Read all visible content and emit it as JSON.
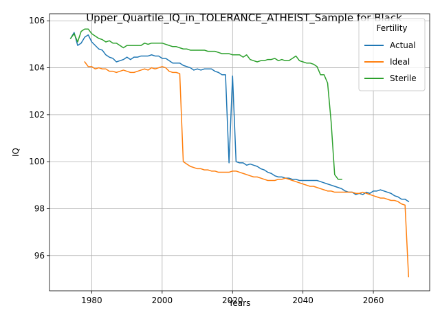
{
  "chart_data": {
    "type": "line",
    "title": "Upper_Quartile_IQ_in_TOLERANCE_ATHEIST_Sample for Black",
    "xlabel": "Years",
    "ylabel": "IQ",
    "xlim": [
      1968,
      2076
    ],
    "ylim": [
      94.5,
      106.3
    ],
    "xticks": [
      1980,
      2000,
      2020,
      2040,
      2060
    ],
    "yticks": [
      96,
      98,
      100,
      102,
      104,
      106
    ],
    "grid": true,
    "legend": {
      "title": "Fertility",
      "position": "top-right"
    },
    "series": [
      {
        "name": "Actual",
        "color": "#1f77b4",
        "points": [
          [
            1974,
            105.25
          ],
          [
            1975,
            105.5
          ],
          [
            1976,
            104.95
          ],
          [
            1977,
            105.05
          ],
          [
            1978,
            105.3
          ],
          [
            1979,
            105.4
          ],
          [
            1980,
            105.1
          ],
          [
            1981,
            104.95
          ],
          [
            1982,
            104.8
          ],
          [
            1983,
            104.75
          ],
          [
            1984,
            104.55
          ],
          [
            1985,
            104.45
          ],
          [
            1986,
            104.4
          ],
          [
            1987,
            104.25
          ],
          [
            1988,
            104.3
          ],
          [
            1989,
            104.35
          ],
          [
            1990,
            104.45
          ],
          [
            1991,
            104.35
          ],
          [
            1992,
            104.45
          ],
          [
            1993,
            104.45
          ],
          [
            1994,
            104.5
          ],
          [
            1995,
            104.5
          ],
          [
            1996,
            104.5
          ],
          [
            1997,
            104.55
          ],
          [
            1998,
            104.5
          ],
          [
            1999,
            104.5
          ],
          [
            2000,
            104.4
          ],
          [
            2001,
            104.4
          ],
          [
            2002,
            104.3
          ],
          [
            2003,
            104.2
          ],
          [
            2004,
            104.2
          ],
          [
            2005,
            104.2
          ],
          [
            2006,
            104.1
          ],
          [
            2007,
            104.05
          ],
          [
            2008,
            104.0
          ],
          [
            2009,
            103.9
          ],
          [
            2010,
            103.95
          ],
          [
            2011,
            103.9
          ],
          [
            2012,
            103.95
          ],
          [
            2013,
            103.95
          ],
          [
            2014,
            103.95
          ],
          [
            2015,
            103.85
          ],
          [
            2016,
            103.8
          ],
          [
            2017,
            103.7
          ],
          [
            2018,
            103.7
          ],
          [
            2019,
            99.95
          ],
          [
            2020,
            103.65
          ],
          [
            2021,
            100.0
          ],
          [
            2022,
            99.95
          ],
          [
            2023,
            99.95
          ],
          [
            2024,
            99.85
          ],
          [
            2025,
            99.9
          ],
          [
            2026,
            99.85
          ],
          [
            2027,
            99.8
          ],
          [
            2028,
            99.7
          ],
          [
            2029,
            99.65
          ],
          [
            2030,
            99.55
          ],
          [
            2031,
            99.5
          ],
          [
            2032,
            99.4
          ],
          [
            2033,
            99.35
          ],
          [
            2034,
            99.35
          ],
          [
            2035,
            99.3
          ],
          [
            2036,
            99.3
          ],
          [
            2037,
            99.25
          ],
          [
            2038,
            99.25
          ],
          [
            2039,
            99.2
          ],
          [
            2040,
            99.2
          ],
          [
            2041,
            99.2
          ],
          [
            2042,
            99.2
          ],
          [
            2043,
            99.2
          ],
          [
            2044,
            99.2
          ],
          [
            2045,
            99.15
          ],
          [
            2046,
            99.1
          ],
          [
            2047,
            99.05
          ],
          [
            2048,
            99.0
          ],
          [
            2049,
            98.95
          ],
          [
            2050,
            98.9
          ],
          [
            2051,
            98.85
          ],
          [
            2052,
            98.75
          ],
          [
            2053,
            98.7
          ],
          [
            2054,
            98.7
          ],
          [
            2055,
            98.6
          ],
          [
            2056,
            98.65
          ],
          [
            2057,
            98.6
          ],
          [
            2058,
            98.7
          ],
          [
            2059,
            98.65
          ],
          [
            2060,
            98.75
          ],
          [
            2061,
            98.75
          ],
          [
            2062,
            98.8
          ],
          [
            2063,
            98.75
          ],
          [
            2064,
            98.7
          ],
          [
            2065,
            98.65
          ],
          [
            2066,
            98.55
          ],
          [
            2067,
            98.5
          ],
          [
            2068,
            98.4
          ],
          [
            2069,
            98.4
          ],
          [
            2070,
            98.3
          ]
        ]
      },
      {
        "name": "Ideal",
        "color": "#ff7f0e",
        "points": [
          [
            1978,
            104.25
          ],
          [
            1979,
            104.05
          ],
          [
            1980,
            104.05
          ],
          [
            1981,
            103.95
          ],
          [
            1982,
            104.0
          ],
          [
            1983,
            103.95
          ],
          [
            1984,
            103.95
          ],
          [
            1985,
            103.85
          ],
          [
            1986,
            103.85
          ],
          [
            1987,
            103.8
          ],
          [
            1988,
            103.85
          ],
          [
            1989,
            103.9
          ],
          [
            1990,
            103.85
          ],
          [
            1991,
            103.8
          ],
          [
            1992,
            103.8
          ],
          [
            1993,
            103.85
          ],
          [
            1994,
            103.9
          ],
          [
            1995,
            103.95
          ],
          [
            1996,
            103.9
          ],
          [
            1997,
            104.0
          ],
          [
            1998,
            103.95
          ],
          [
            1999,
            104.0
          ],
          [
            2000,
            104.05
          ],
          [
            2001,
            104.0
          ],
          [
            2002,
            103.85
          ],
          [
            2003,
            103.8
          ],
          [
            2004,
            103.8
          ],
          [
            2005,
            103.75
          ],
          [
            2006,
            100.0
          ],
          [
            2007,
            99.9
          ],
          [
            2008,
            99.8
          ],
          [
            2009,
            99.75
          ],
          [
            2010,
            99.7
          ],
          [
            2011,
            99.7
          ],
          [
            2012,
            99.65
          ],
          [
            2013,
            99.65
          ],
          [
            2014,
            99.6
          ],
          [
            2015,
            99.6
          ],
          [
            2016,
            99.55
          ],
          [
            2017,
            99.55
          ],
          [
            2018,
            99.55
          ],
          [
            2019,
            99.55
          ],
          [
            2020,
            99.6
          ],
          [
            2021,
            99.6
          ],
          [
            2022,
            99.55
          ],
          [
            2023,
            99.5
          ],
          [
            2024,
            99.45
          ],
          [
            2025,
            99.4
          ],
          [
            2026,
            99.35
          ],
          [
            2027,
            99.35
          ],
          [
            2028,
            99.3
          ],
          [
            2029,
            99.25
          ],
          [
            2030,
            99.2
          ],
          [
            2031,
            99.2
          ],
          [
            2032,
            99.2
          ],
          [
            2033,
            99.25
          ],
          [
            2034,
            99.25
          ],
          [
            2035,
            99.3
          ],
          [
            2036,
            99.25
          ],
          [
            2037,
            99.2
          ],
          [
            2038,
            99.15
          ],
          [
            2039,
            99.1
          ],
          [
            2040,
            99.05
          ],
          [
            2041,
            99.0
          ],
          [
            2042,
            98.95
          ],
          [
            2043,
            98.95
          ],
          [
            2044,
            98.9
          ],
          [
            2045,
            98.85
          ],
          [
            2046,
            98.8
          ],
          [
            2047,
            98.75
          ],
          [
            2048,
            98.75
          ],
          [
            2049,
            98.7
          ],
          [
            2050,
            98.7
          ],
          [
            2051,
            98.7
          ],
          [
            2052,
            98.7
          ],
          [
            2053,
            98.7
          ],
          [
            2054,
            98.7
          ],
          [
            2055,
            98.65
          ],
          [
            2056,
            98.65
          ],
          [
            2057,
            98.7
          ],
          [
            2058,
            98.65
          ],
          [
            2059,
            98.6
          ],
          [
            2060,
            98.55
          ],
          [
            2061,
            98.5
          ],
          [
            2062,
            98.45
          ],
          [
            2063,
            98.45
          ],
          [
            2064,
            98.4
          ],
          [
            2065,
            98.35
          ],
          [
            2066,
            98.35
          ],
          [
            2067,
            98.3
          ],
          [
            2068,
            98.2
          ],
          [
            2069,
            98.15
          ],
          [
            2070,
            95.1
          ]
        ]
      },
      {
        "name": "Sterile",
        "color": "#2ca02c",
        "points": [
          [
            1974,
            105.25
          ],
          [
            1975,
            105.45
          ],
          [
            1976,
            105.1
          ],
          [
            1977,
            105.55
          ],
          [
            1978,
            105.65
          ],
          [
            1979,
            105.65
          ],
          [
            1980,
            105.45
          ],
          [
            1981,
            105.35
          ],
          [
            1982,
            105.25
          ],
          [
            1983,
            105.2
          ],
          [
            1984,
            105.1
          ],
          [
            1985,
            105.15
          ],
          [
            1986,
            105.05
          ],
          [
            1987,
            105.05
          ],
          [
            1988,
            104.95
          ],
          [
            1989,
            104.85
          ],
          [
            1990,
            104.95
          ],
          [
            1991,
            104.95
          ],
          [
            1992,
            104.95
          ],
          [
            1993,
            104.95
          ],
          [
            1994,
            104.95
          ],
          [
            1995,
            105.05
          ],
          [
            1996,
            105.0
          ],
          [
            1997,
            105.05
          ],
          [
            1998,
            105.05
          ],
          [
            1999,
            105.05
          ],
          [
            2000,
            105.05
          ],
          [
            2001,
            105.0
          ],
          [
            2002,
            104.95
          ],
          [
            2003,
            104.9
          ],
          [
            2004,
            104.9
          ],
          [
            2005,
            104.85
          ],
          [
            2006,
            104.8
          ],
          [
            2007,
            104.8
          ],
          [
            2008,
            104.75
          ],
          [
            2009,
            104.75
          ],
          [
            2010,
            104.75
          ],
          [
            2011,
            104.75
          ],
          [
            2012,
            104.75
          ],
          [
            2013,
            104.7
          ],
          [
            2014,
            104.7
          ],
          [
            2015,
            104.7
          ],
          [
            2016,
            104.65
          ],
          [
            2017,
            104.6
          ],
          [
            2018,
            104.6
          ],
          [
            2019,
            104.6
          ],
          [
            2020,
            104.55
          ],
          [
            2021,
            104.55
          ],
          [
            2022,
            104.55
          ],
          [
            2023,
            104.45
          ],
          [
            2024,
            104.55
          ],
          [
            2025,
            104.35
          ],
          [
            2026,
            104.3
          ],
          [
            2027,
            104.25
          ],
          [
            2028,
            104.3
          ],
          [
            2029,
            104.3
          ],
          [
            2030,
            104.35
          ],
          [
            2031,
            104.35
          ],
          [
            2032,
            104.4
          ],
          [
            2033,
            104.3
          ],
          [
            2034,
            104.35
          ],
          [
            2035,
            104.3
          ],
          [
            2036,
            104.3
          ],
          [
            2037,
            104.4
          ],
          [
            2038,
            104.5
          ],
          [
            2039,
            104.3
          ],
          [
            2040,
            104.25
          ],
          [
            2041,
            104.2
          ],
          [
            2042,
            104.2
          ],
          [
            2043,
            104.15
          ],
          [
            2044,
            104.05
          ],
          [
            2045,
            103.7
          ],
          [
            2046,
            103.7
          ],
          [
            2047,
            103.35
          ],
          [
            2048,
            101.7
          ],
          [
            2049,
            99.45
          ],
          [
            2050,
            99.25
          ],
          [
            2051,
            99.25
          ]
        ]
      }
    ]
  }
}
